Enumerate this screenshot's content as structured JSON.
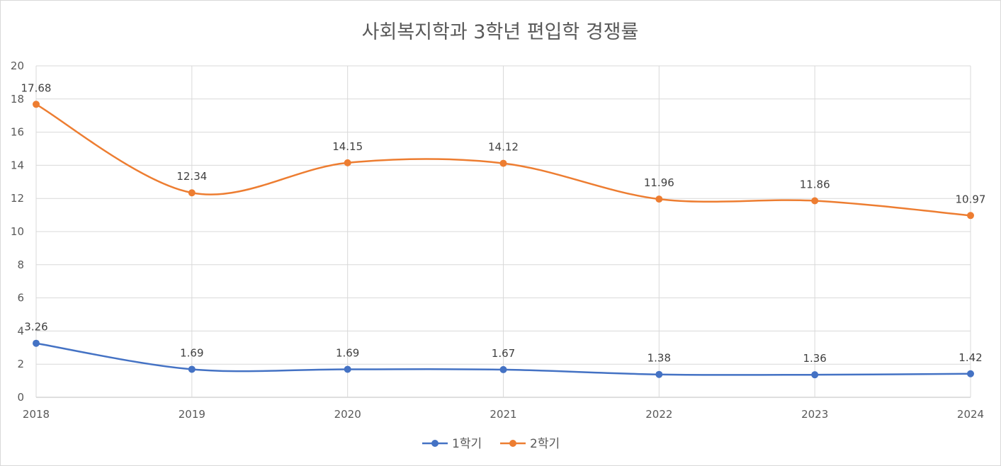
{
  "chart_data": {
    "type": "line",
    "title": "사회복지학과 3학년 편입학 경쟁률",
    "xlabel": "",
    "ylabel": "",
    "categories": [
      "2018",
      "2019",
      "2020",
      "2021",
      "2022",
      "2023",
      "2024"
    ],
    "ylim": [
      0,
      20
    ],
    "yticks": [
      "0",
      "2",
      "4",
      "6",
      "8",
      "10",
      "12",
      "14",
      "16",
      "18",
      "20"
    ],
    "grid": true,
    "smooth": true,
    "legend": "bottom",
    "series": [
      {
        "name": "1학기",
        "color": "#4472c4",
        "values": [
          3.26,
          1.69,
          1.69,
          1.67,
          1.38,
          1.36,
          1.42
        ],
        "labels": [
          "3.26",
          "1.69",
          "1.69",
          "1.67",
          "1.38",
          "1.36",
          "1.42"
        ]
      },
      {
        "name": "2학기",
        "color": "#ed7d31",
        "values": [
          17.68,
          12.34,
          14.15,
          14.12,
          11.96,
          11.86,
          10.97
        ],
        "labels": [
          "17.68",
          "12.34",
          "14.15",
          "14.12",
          "11.96",
          "11.86",
          "10.97"
        ]
      }
    ]
  }
}
